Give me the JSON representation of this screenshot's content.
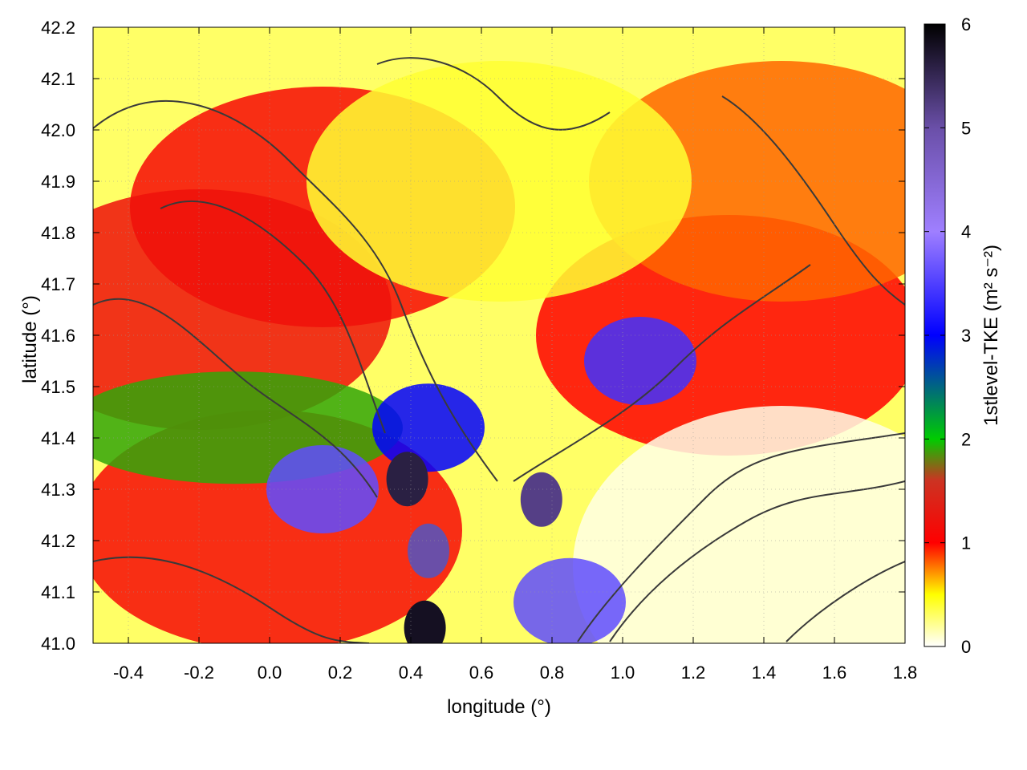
{
  "chart_data": {
    "type": "heatmap",
    "title": "",
    "xlabel": "longitude (°)",
    "ylabel": "latitude (°)",
    "xlim": [
      -0.5,
      1.8
    ],
    "ylim": [
      41.0,
      42.2
    ],
    "x_ticks": [
      "-0.4",
      "-0.2",
      "0.0",
      "0.2",
      "0.4",
      "0.6",
      "0.8",
      "1.0",
      "1.2",
      "1.4",
      "1.6",
      "1.8"
    ],
    "x_tick_values": [
      -0.4,
      -0.2,
      0.0,
      0.2,
      0.4,
      0.6,
      0.8,
      1.0,
      1.2,
      1.4,
      1.6,
      1.8
    ],
    "y_ticks": [
      "41.0",
      "41.1",
      "41.2",
      "41.3",
      "41.4",
      "41.5",
      "41.6",
      "41.7",
      "41.8",
      "41.9",
      "42.0",
      "42.1",
      "42.2"
    ],
    "y_tick_values": [
      41.0,
      41.1,
      41.2,
      41.3,
      41.4,
      41.5,
      41.6,
      41.7,
      41.8,
      41.9,
      42.0,
      42.1,
      42.2
    ],
    "grid": true,
    "colorbar": {
      "label": "1stlevel-TKE (m² s⁻²)",
      "range": [
        0,
        6
      ],
      "ticks": [
        "0",
        "1",
        "2",
        "3",
        "4",
        "5",
        "6"
      ],
      "tick_values": [
        0,
        1,
        2,
        3,
        4,
        5,
        6
      ],
      "palette": [
        {
          "value": 0.0,
          "color": "#ffffff"
        },
        {
          "value": 0.5,
          "color": "#ffff00"
        },
        {
          "value": 1.0,
          "color": "#ff0000"
        },
        {
          "value": 1.6,
          "color": "#cc3322"
        },
        {
          "value": 2.0,
          "color": "#00cc00"
        },
        {
          "value": 3.0,
          "color": "#0000ff"
        },
        {
          "value": 4.0,
          "color": "#9f7fff"
        },
        {
          "value": 5.0,
          "color": "#6a4fa8"
        },
        {
          "value": 6.0,
          "color": "#000000"
        }
      ]
    },
    "field_regions": [
      {
        "name": "NW red plateau",
        "lon": 0.15,
        "lat": 41.85,
        "value": 1.1
      },
      {
        "name": "W red band",
        "lon": -0.2,
        "lat": 41.65,
        "value": 1.2
      },
      {
        "name": "SW green band",
        "lon": -0.1,
        "lat": 41.42,
        "value": 1.9
      },
      {
        "name": "S red band",
        "lon": 0.0,
        "lat": 41.22,
        "value": 1.1
      },
      {
        "name": "central blue",
        "lon": 0.45,
        "lat": 41.42,
        "value": 3.0
      },
      {
        "name": "central black core",
        "lon": 0.39,
        "lat": 41.32,
        "value": 5.6
      },
      {
        "name": "south dark core",
        "lon": 0.45,
        "lat": 41.18,
        "value": 5.0
      },
      {
        "name": "south-edge black core",
        "lon": 0.44,
        "lat": 41.03,
        "value": 5.8
      },
      {
        "name": "western blue patch",
        "lon": 0.15,
        "lat": 41.3,
        "value": 3.6
      },
      {
        "name": "east blue patch",
        "lon": 1.05,
        "lat": 41.55,
        "value": 3.4
      },
      {
        "name": "yellow valley",
        "lon": 0.65,
        "lat": 41.9,
        "value": 0.4
      },
      {
        "name": "NE mixed",
        "lon": 1.45,
        "lat": 41.9,
        "value": 0.8
      },
      {
        "name": "east red",
        "lon": 1.3,
        "lat": 41.6,
        "value": 1.0
      },
      {
        "name": "SE calm",
        "lon": 1.45,
        "lat": 41.15,
        "value": 0.05
      },
      {
        "name": "small black core",
        "lon": 0.77,
        "lat": 41.28,
        "value": 5.2
      },
      {
        "name": "coastal blue",
        "lon": 0.85,
        "lat": 41.08,
        "value": 3.6
      }
    ]
  }
}
